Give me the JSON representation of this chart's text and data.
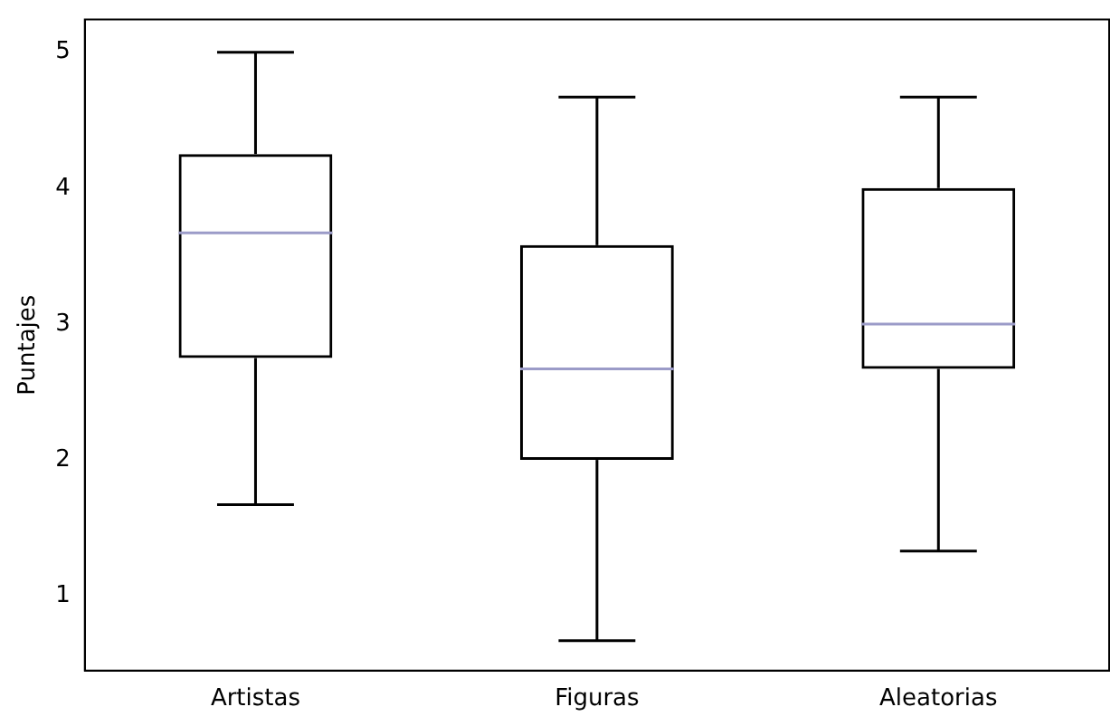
{
  "chart_data": {
    "type": "box",
    "ylabel": "Puntajes",
    "categories": [
      "Artistas",
      "Figuras",
      "Aleatorias"
    ],
    "boxes": [
      {
        "low": 1.67,
        "q1": 2.75,
        "median": 3.67,
        "q3": 4.25,
        "high": 5
      },
      {
        "low": 0.67,
        "q1": 2.0,
        "median": 2.67,
        "q3": 3.58,
        "high": 4.67
      },
      {
        "low": 1.33,
        "q1": 2.67,
        "median": 3.0,
        "q3": 4.0,
        "high": 4.67
      }
    ],
    "color": "#000000",
    "ylim": [
      0.45,
      5.24
    ],
    "yticks": [
      1,
      2,
      3,
      4,
      5
    ],
    "grid": false,
    "legend": false
  }
}
